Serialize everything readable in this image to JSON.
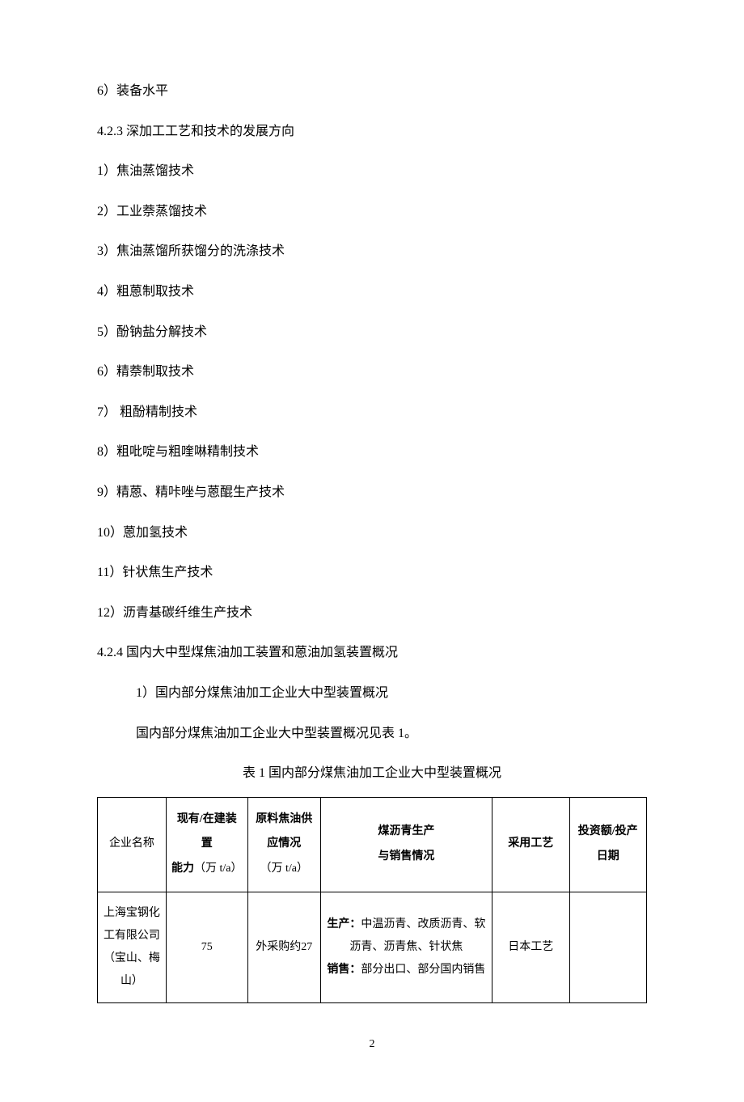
{
  "lines": [
    {
      "text": "6）装备水平",
      "indent": 1
    },
    {
      "text": "4.2.3 深加工工艺和技术的发展方向",
      "indent": 1
    },
    {
      "text": "1）焦油蒸馏技术",
      "indent": 1
    },
    {
      "text": "2）工业萘蒸馏技术",
      "indent": 1
    },
    {
      "text": "3）焦油蒸馏所获馏分的洗涤技术",
      "indent": 1
    },
    {
      "text": "4）粗蒽制取技术",
      "indent": 1
    },
    {
      "text": "5）酚钠盐分解技术",
      "indent": 1
    },
    {
      "text": "6）精萘制取技术",
      "indent": 1
    },
    {
      "text": "7）  粗酚精制技术",
      "indent": 1
    },
    {
      "text": "8）粗吡啶与粗喹啉精制技术",
      "indent": 1
    },
    {
      "text": "9）精蒽、精咔唑与蒽醌生产技术",
      "indent": 1
    },
    {
      "text": "10）蒽加氢技术",
      "indent": 1
    },
    {
      "text": "11）针状焦生产技术",
      "indent": 1
    },
    {
      "text": "12）沥青基碳纤维生产技术",
      "indent": 1
    },
    {
      "text": "4.2.4 国内大中型煤焦油加工装置和蒽油加氢装置概况",
      "indent": 1
    },
    {
      "text": "1）国内部分煤焦油加工企业大中型装置概况",
      "indent": 2
    },
    {
      "text": "国内部分煤焦油加工企业大中型装置概况见表 1。",
      "indent": 2
    }
  ],
  "tableCaption": "表 1    国内部分煤焦油加工企业大中型装置概况",
  "table": {
    "headers": [
      {
        "line1": "企业名称",
        "line2": "",
        "bold": false
      },
      {
        "line1_bold": "现有/在建装置",
        "line2_bold": "能力",
        "line2_normal": "（万 t/a）"
      },
      {
        "line1_bold": "原料焦油供应情况",
        "line2_normal": "（万 t/a）"
      },
      {
        "line1_bold": "煤沥青生产",
        "line2_bold": "与销售情况"
      },
      {
        "line1_bold": "采用工艺"
      },
      {
        "line1_bold": "投资额/投产日期"
      }
    ],
    "row1": {
      "company": "上海宝钢化工有限公司（宝山、梅山）",
      "capacity": "75",
      "supply": "外采购约27",
      "production_label": "生产：",
      "production_text": "中温沥青、改质沥青、软沥青、沥青焦、针状焦",
      "sales_label": "销售：",
      "sales_text": "部分出口、部分国内销售",
      "process": "日本工艺",
      "investment": ""
    }
  },
  "pageNumber": "2"
}
